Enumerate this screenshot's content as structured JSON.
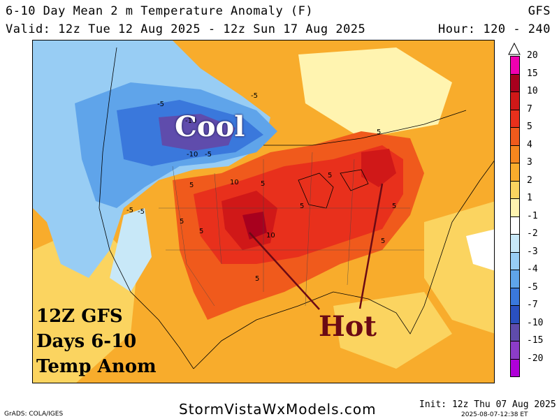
{
  "header": {
    "title": "6-10 Day Mean 2 m Temperature Anomaly (F)",
    "model": "GFS",
    "valid": "Valid: 12z Tue 12 Aug 2025 - 12z Sun 17 Aug 2025",
    "hours": "Hour: 120 - 240"
  },
  "annotations": {
    "cool": "Cool",
    "hot": "Hot",
    "label_line1": "12Z GFS",
    "label_line2": "Days 6-10",
    "label_line3": "Temp Anom"
  },
  "contour_labels": [
    "-5",
    "-5",
    "-10",
    "-10",
    "-5",
    "-5",
    "-5",
    "5",
    "10",
    "5",
    "5",
    "5",
    "5",
    "5",
    "10",
    "5",
    "5",
    "5",
    "5"
  ],
  "colorbar": {
    "ticks": [
      "20",
      "15",
      "10",
      "7",
      "5",
      "4",
      "3",
      "2",
      "1",
      "-1",
      "-2",
      "-3",
      "-4",
      "-5",
      "-7",
      "-10",
      "-15",
      "-20"
    ],
    "colors": [
      "#f000b0",
      "#a8001e",
      "#d01818",
      "#e8301c",
      "#f05a1c",
      "#f5861e",
      "#f8ac2c",
      "#fbd460",
      "#fff4b0",
      "#ffffff",
      "#c8e8f8",
      "#98cdf4",
      "#5fa4ea",
      "#3a78dc",
      "#2a50c0",
      "#5f4cac",
      "#8c3cc8",
      "#b000d8"
    ]
  },
  "footer": {
    "site": "StormVistaWxModels.com",
    "init": "Init: 12z Thu 07 Aug 2025",
    "grads": "GrADS: COLA/IGES",
    "timestamp": "2025-08-07-12:38 ET"
  }
}
